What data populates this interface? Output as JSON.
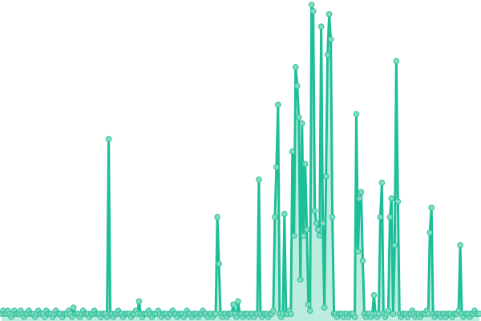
{
  "chart_data": {
    "type": "line",
    "title": "",
    "xlabel": "",
    "ylabel": "",
    "axes_visible": false,
    "grid": false,
    "legend": "none",
    "markers": true,
    "area_fill": true,
    "ylim": [
      0,
      100
    ],
    "colors": {
      "line": "#1dbf98",
      "marker_fill": "#7fdcc2",
      "marker_stroke": "#2fbf9a",
      "area": "#8fe0c8"
    },
    "series": [
      {
        "values": [
          1,
          2,
          1,
          1,
          2,
          1,
          0,
          1,
          2,
          1,
          1,
          1,
          2,
          1,
          0,
          1,
          1,
          2,
          1,
          1,
          1,
          0,
          1,
          2,
          1,
          1,
          1,
          0,
          2,
          1,
          1,
          1,
          0,
          1,
          2,
          1,
          1,
          1,
          0,
          1,
          1,
          1,
          2,
          1,
          0,
          3,
          1,
          1,
          1,
          0,
          1,
          2,
          1,
          1,
          1,
          0,
          1,
          1,
          2,
          1,
          1,
          1,
          0,
          1,
          1,
          1,
          0,
          57,
          1,
          1,
          0,
          1,
          1,
          2,
          1,
          1,
          0,
          1,
          1,
          1,
          1,
          0,
          1,
          1,
          2,
          1,
          5,
          1,
          0,
          1,
          1,
          1,
          2,
          1,
          0,
          1,
          1,
          1,
          2,
          1,
          0,
          1,
          1,
          1,
          0,
          1,
          1,
          2,
          1,
          1,
          0,
          1,
          1,
          1,
          0,
          1,
          2,
          1,
          1,
          0,
          1,
          1,
          1,
          0,
          1,
          1,
          2,
          1,
          1,
          0,
          1,
          1,
          0,
          1,
          1,
          32,
          17,
          1,
          0,
          1,
          1,
          0,
          1,
          1,
          1,
          4,
          1,
          0,
          5,
          1,
          1,
          0,
          1,
          1,
          1,
          0,
          1,
          1,
          0,
          1,
          1,
          44,
          1,
          0,
          1,
          1,
          1,
          0,
          1,
          1,
          2,
          32,
          48,
          68,
          1,
          0,
          1,
          33,
          1,
          1,
          2,
          1,
          53,
          26,
          80,
          74,
          64,
          12,
          62,
          26,
          49,
          28,
          4,
          2,
          100,
          98,
          34,
          30,
          28,
          26,
          93,
          30,
          3,
          45,
          84,
          97,
          89,
          32,
          1,
          1,
          0,
          1,
          1,
          1,
          0,
          1,
          1,
          0,
          1,
          1,
          1,
          0,
          65,
          21,
          38,
          40,
          18,
          1,
          0,
          1,
          1,
          0,
          1,
          7,
          1,
          0,
          1,
          32,
          43,
          1,
          0,
          1,
          2,
          32,
          38,
          1,
          23,
          82,
          37,
          1,
          0,
          1,
          1,
          1,
          0,
          1,
          1,
          2,
          1,
          0,
          1,
          1,
          0,
          1,
          1,
          1,
          2,
          1,
          27,
          35,
          1,
          0,
          1,
          1,
          1,
          0,
          1,
          1,
          0,
          1,
          1,
          1,
          0,
          1,
          1,
          1,
          2,
          23,
          1,
          0,
          1,
          1,
          1,
          0,
          1,
          1,
          2,
          1,
          1,
          1
        ]
      }
    ]
  }
}
